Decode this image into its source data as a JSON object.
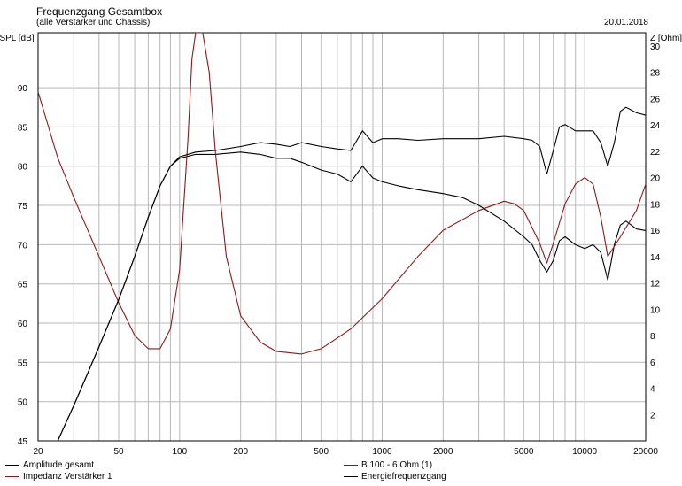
{
  "header": {
    "title": "Frequenzgang Gesamtbox",
    "subtitle": "(alle Verstärker und Chassis)",
    "date": "20.01.2018"
  },
  "chart_data": {
    "type": "line",
    "title": "Frequenzgang Gesamtbox",
    "subtitle": "(alle Verstärker und Chassis)",
    "xscale": "log",
    "xlim": [
      20,
      20000
    ],
    "ylim": [
      45,
      97
    ],
    "y2lim": [
      0,
      31
    ],
    "ylabel": "SPL [dB]",
    "y2label": "Z [Ohm]",
    "grid": true,
    "x_ticks": [
      20,
      50,
      100,
      200,
      500,
      1000,
      2000,
      5000,
      10000,
      20000
    ],
    "y_ticks": [
      45,
      50,
      55,
      60,
      65,
      70,
      75,
      80,
      85,
      90
    ],
    "y2_ticks": [
      2,
      4,
      6,
      8,
      10,
      12,
      14,
      16,
      18,
      20,
      22,
      24,
      26,
      28,
      30
    ],
    "series": [
      {
        "name": "Amplitude gesamt",
        "color": "#000000",
        "axis": "left",
        "x": [
          25,
          30,
          35,
          40,
          50,
          60,
          70,
          80,
          90,
          100,
          120,
          150,
          200,
          250,
          300,
          350,
          400,
          500,
          600,
          700,
          800,
          900,
          1000,
          1200,
          1500,
          2000,
          2500,
          3000,
          4000,
          5000,
          5500,
          6000,
          6500,
          7000,
          7500,
          8000,
          9000,
          10000,
          11000,
          12000,
          13000,
          14000,
          15000,
          16000,
          18000,
          20000
        ],
        "values": [
          45,
          49.5,
          53.5,
          57,
          63,
          68.5,
          73.5,
          77.5,
          80,
          81,
          81.5,
          81.5,
          81.8,
          81.5,
          81,
          81,
          80.5,
          79.5,
          79,
          78,
          80,
          78.5,
          78,
          77.5,
          77,
          76.5,
          76,
          75,
          73,
          71,
          70,
          68,
          66.5,
          68,
          70.5,
          71,
          70,
          69.5,
          70,
          69,
          65.5,
          70,
          72.5,
          73,
          72,
          71.8
        ]
      },
      {
        "name": "Impedanz Verstärker 1",
        "color": "#8b1a1a",
        "axis": "right",
        "x": [
          20,
          25,
          30,
          40,
          50,
          60,
          70,
          80,
          90,
          100,
          110,
          115,
          120,
          130,
          140,
          150,
          170,
          200,
          250,
          300,
          400,
          500,
          700,
          1000,
          1500,
          2000,
          3000,
          4000,
          4500,
          5000,
          6000,
          6500,
          7000,
          8000,
          9000,
          10000,
          11000,
          12000,
          13000,
          15000,
          18000,
          20000
        ],
        "values": [
          26.5,
          21.5,
          18.5,
          14,
          10.5,
          8,
          7,
          7,
          8.5,
          13,
          23,
          29,
          31,
          31,
          28,
          22,
          14,
          9.5,
          7.5,
          6.8,
          6.6,
          7,
          8.5,
          10.8,
          14,
          16,
          17.5,
          18.2,
          18,
          17.5,
          15,
          13.5,
          15,
          18,
          19.5,
          20,
          19.5,
          17,
          14,
          15.5,
          17.5,
          19.5
        ]
      },
      {
        "name": "B 100 - 6 Ohm (1)",
        "color": "#1f2fa8",
        "axis": "left",
        "x": [],
        "values": []
      },
      {
        "name": "Energiefrequenzgang",
        "color": "#000000",
        "axis": "left",
        "x": [
          25,
          30,
          35,
          40,
          50,
          60,
          70,
          80,
          90,
          100,
          120,
          150,
          200,
          250,
          300,
          350,
          400,
          500,
          600,
          700,
          800,
          900,
          1000,
          1200,
          1500,
          2000,
          2500,
          3000,
          4000,
          5000,
          5500,
          6000,
          6500,
          7000,
          7500,
          8000,
          9000,
          10000,
          11000,
          12000,
          13000,
          14000,
          15000,
          16000,
          18000,
          20000
        ],
        "values": [
          45,
          49.5,
          53.5,
          57,
          63,
          68.5,
          73.5,
          77.5,
          80,
          81.2,
          81.8,
          82,
          82.5,
          83,
          82.8,
          82.5,
          83,
          82.5,
          82.2,
          82,
          84.5,
          83,
          83.5,
          83.5,
          83.3,
          83.5,
          83.5,
          83.5,
          83.8,
          83.5,
          83.3,
          82.5,
          79,
          82,
          85,
          85.3,
          84.5,
          84.5,
          84.5,
          83,
          80,
          83,
          87,
          87.5,
          86.8,
          86.5
        ]
      }
    ],
    "legend": [
      {
        "label": "Amplitude gesamt",
        "color": "#000000"
      },
      {
        "label": "Impedanz Verstärker 1",
        "color": "#8b1a1a"
      },
      {
        "label": "B 100 - 6 Ohm (1)",
        "color": "#1f2fa8"
      },
      {
        "label": "Energiefrequenzgang",
        "color": "#000000"
      }
    ]
  }
}
